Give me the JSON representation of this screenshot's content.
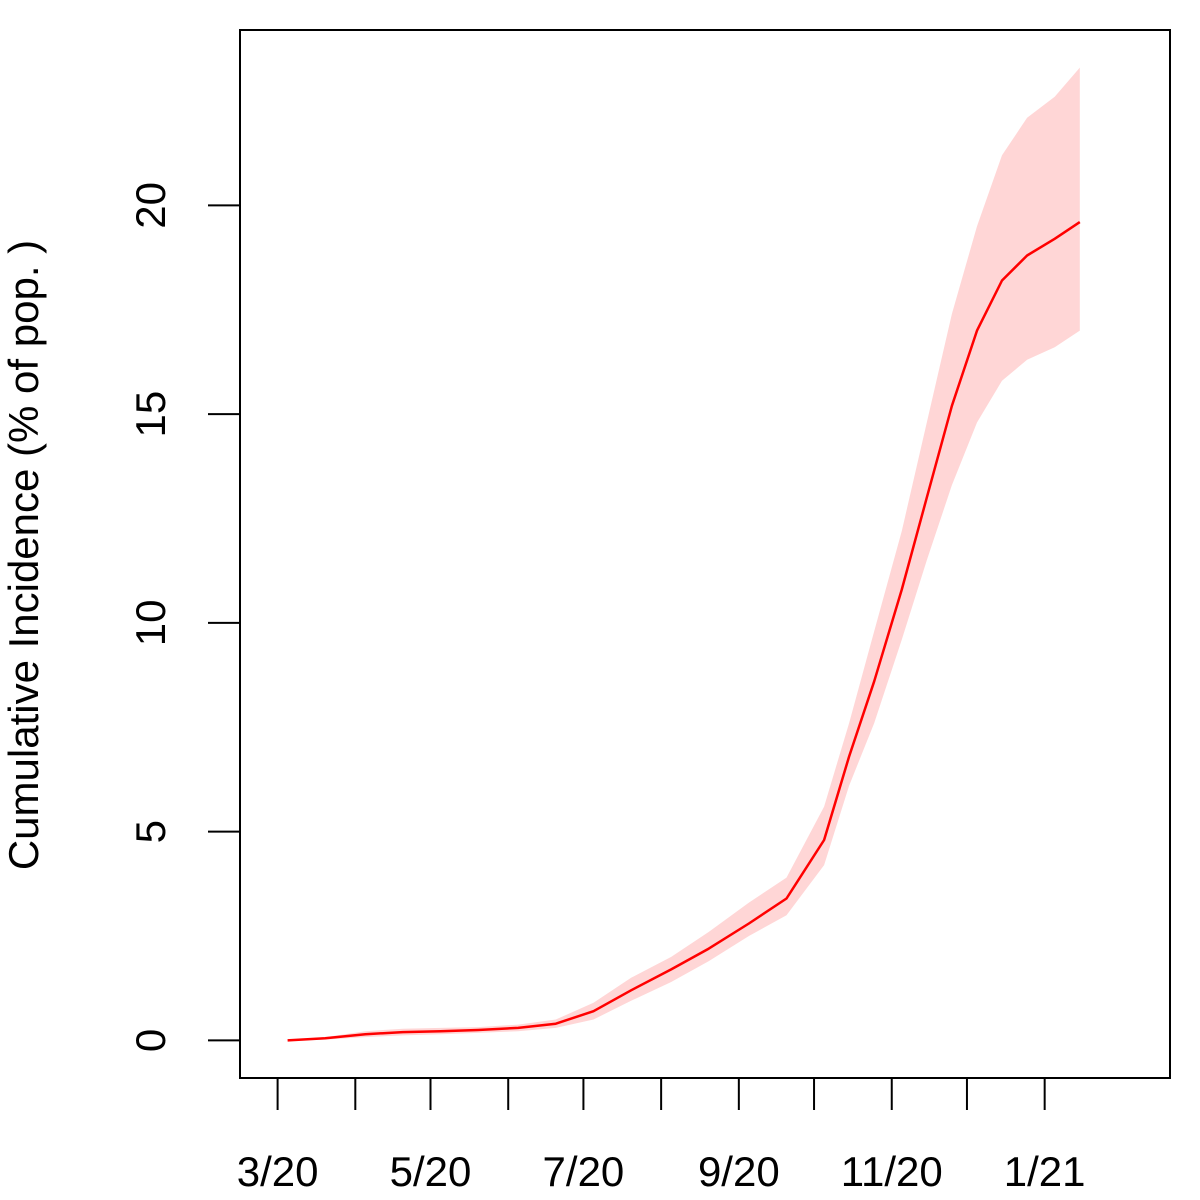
{
  "chart_data": {
    "type": "line",
    "title": "",
    "xlabel": "",
    "ylabel": "Cumulative Incidence (% of pop. )",
    "xlim": [
      "2020-02-15",
      "2021-02-20"
    ],
    "ylim": [
      -0.9,
      24.2
    ],
    "x_ticks": [
      "2020-03-01",
      "2020-04-01",
      "2020-05-01",
      "2020-06-01",
      "2020-07-01",
      "2020-08-01",
      "2020-09-01",
      "2020-10-01",
      "2020-11-01",
      "2020-12-01",
      "2021-01-01"
    ],
    "x_tick_labels": [
      {
        "date": "2020-03-01",
        "label": "3/20"
      },
      {
        "date": "2020-05-01",
        "label": "5/20"
      },
      {
        "date": "2020-07-01",
        "label": "7/20"
      },
      {
        "date": "2020-09-01",
        "label": "9/20"
      },
      {
        "date": "2020-11-01",
        "label": "11/20"
      },
      {
        "date": "2021-01-01",
        "label": "1/21"
      }
    ],
    "y_ticks": [
      0,
      5,
      10,
      15,
      20
    ],
    "y_tick_labels": [
      "0",
      "5",
      "10",
      "15",
      "20"
    ],
    "grid": false,
    "legend": "none",
    "series": [
      {
        "type": "line",
        "color": "#ff0000",
        "x": [
          "2020-03-05",
          "2020-03-20",
          "2020-04-05",
          "2020-04-20",
          "2020-05-05",
          "2020-05-20",
          "2020-06-05",
          "2020-06-20",
          "2020-07-05",
          "2020-07-20",
          "2020-08-05",
          "2020-08-20",
          "2020-09-05",
          "2020-09-20",
          "2020-10-05",
          "2020-10-15",
          "2020-10-25",
          "2020-11-05",
          "2020-11-15",
          "2020-11-25",
          "2020-12-05",
          "2020-12-15",
          "2020-12-25",
          "2021-01-05",
          "2021-01-15"
        ],
        "y": [
          0,
          0.05,
          0.15,
          0.2,
          0.22,
          0.25,
          0.3,
          0.4,
          0.7,
          1.2,
          1.7,
          2.2,
          2.8,
          3.4,
          4.8,
          6.8,
          8.6,
          10.8,
          13.0,
          15.2,
          17.0,
          18.2,
          18.8,
          19.2,
          19.6
        ]
      },
      {
        "type": "band",
        "color": "#ffd6d6",
        "x": [
          "2020-03-05",
          "2020-03-20",
          "2020-04-05",
          "2020-04-20",
          "2020-05-05",
          "2020-05-20",
          "2020-06-05",
          "2020-06-20",
          "2020-07-05",
          "2020-07-20",
          "2020-08-05",
          "2020-08-20",
          "2020-09-05",
          "2020-09-20",
          "2020-10-05",
          "2020-10-15",
          "2020-10-25",
          "2020-11-05",
          "2020-11-15",
          "2020-11-25",
          "2020-12-05",
          "2020-12-15",
          "2020-12-25",
          "2021-01-05",
          "2021-01-15"
        ],
        "lower": [
          0,
          0.02,
          0.08,
          0.12,
          0.15,
          0.18,
          0.22,
          0.3,
          0.5,
          0.95,
          1.4,
          1.9,
          2.5,
          3.0,
          4.2,
          6.1,
          7.6,
          9.6,
          11.5,
          13.3,
          14.8,
          15.8,
          16.3,
          16.6,
          17.0
        ]
      },
      {
        "type": "band",
        "color": "#ffd6d6",
        "x": [
          "2020-03-05",
          "2020-03-20",
          "2020-04-05",
          "2020-04-20",
          "2020-05-05",
          "2020-05-20",
          "2020-06-05",
          "2020-06-20",
          "2020-07-05",
          "2020-07-20",
          "2020-08-05",
          "2020-08-20",
          "2020-09-05",
          "2020-09-20",
          "2020-10-05",
          "2020-10-15",
          "2020-10-25",
          "2020-11-05",
          "2020-11-15",
          "2020-11-25",
          "2020-12-05",
          "2020-12-15",
          "2020-12-25",
          "2021-01-05",
          "2021-01-15"
        ],
        "upper": [
          0,
          0.08,
          0.22,
          0.28,
          0.3,
          0.32,
          0.38,
          0.5,
          0.9,
          1.5,
          2.0,
          2.6,
          3.3,
          3.9,
          5.6,
          7.6,
          9.8,
          12.2,
          14.8,
          17.4,
          19.5,
          21.2,
          22.1,
          22.6,
          23.3
        ]
      }
    ]
  }
}
